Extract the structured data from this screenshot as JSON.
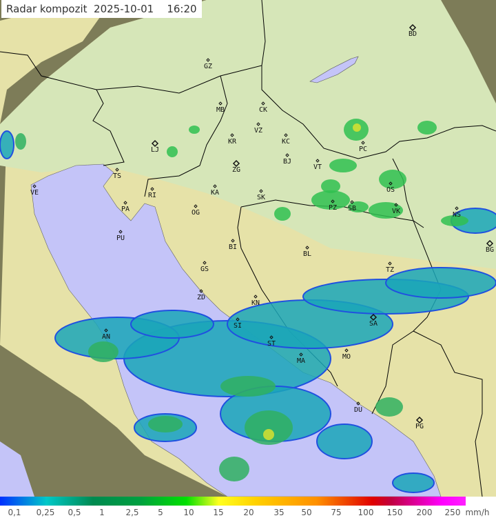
{
  "title": {
    "label": "Radar kompozit",
    "date": "2025-10-01",
    "time": "16:20"
  },
  "map": {
    "colors": {
      "sea": "#c4c4f8",
      "land_coverage": "#e6e2a8",
      "land_north": "#d6e6b8",
      "outside": "#7d7c58",
      "border": "#000000"
    },
    "cities": [
      "GZ",
      "MB",
      "CK",
      "VZ",
      "KR",
      "KC",
      "LJ",
      "ZG",
      "BJ",
      "VT",
      "TS",
      "VE",
      "RI",
      "KA",
      "SK",
      "PA",
      "OG",
      "PC",
      "PZ",
      "SB",
      "OS",
      "VK",
      "NS",
      "BD",
      "BG",
      "PU",
      "BI",
      "BL",
      "GS",
      "TZ",
      "ZD",
      "KN",
      "SI",
      "SA",
      "AN",
      "ST",
      "MA",
      "MO",
      "DU",
      "PG"
    ]
  },
  "legend": {
    "unit": "mm/h",
    "labels": [
      "0,1",
      "0,25",
      "0,5",
      "1",
      "2,5",
      "5",
      "10",
      "15",
      "20",
      "35",
      "50",
      "75",
      "100",
      "150",
      "200",
      "250"
    ]
  }
}
